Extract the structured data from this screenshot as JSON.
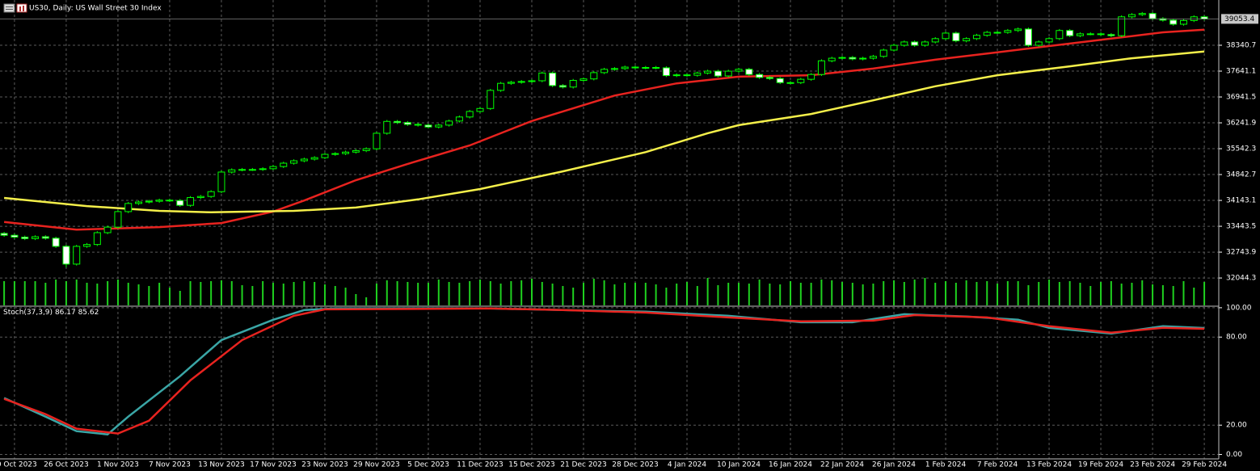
{
  "chart_data": [
    {
      "type": "candlestick",
      "title": "US30, Daily:  US Wall Street 30 Index",
      "xlim": [
        -0.4,
        117.4
      ],
      "ylim": [
        31303,
        39565
      ],
      "yticks": [
        38340.7,
        37641.1,
        36941.5,
        36241.9,
        35542.3,
        34842.7,
        34143.1,
        33443.5,
        32743.9,
        32044.3
      ],
      "xticks": [
        {
          "value": 1,
          "label": "20 Oct 2023"
        },
        {
          "value": 6,
          "label": "26 Oct 2023"
        },
        {
          "value": 11,
          "label": "1 Nov 2023"
        },
        {
          "value": 16,
          "label": "7 Nov 2023"
        },
        {
          "value": 21,
          "label": "13 Nov 2023"
        },
        {
          "value": 26,
          "label": "17 Nov 2023"
        },
        {
          "value": 31,
          "label": "23 Nov 2023"
        },
        {
          "value": 36,
          "label": "29 Nov 2023"
        },
        {
          "value": 41,
          "label": "5 Dec 2023"
        },
        {
          "value": 46,
          "label": "11 Dec 2023"
        },
        {
          "value": 51,
          "label": "15 Dec 2023"
        },
        {
          "value": 56,
          "label": "21 Dec 2023"
        },
        {
          "value": 61,
          "label": "28 Dec 2023"
        },
        {
          "value": 66,
          "label": "4 Jan 2024"
        },
        {
          "value": 71,
          "label": "10 Jan 2024"
        },
        {
          "value": 76,
          "label": "16 Jan 2024"
        },
        {
          "value": 81,
          "label": "22 Jan 2024"
        },
        {
          "value": 86,
          "label": "26 Jan 2024"
        },
        {
          "value": 91,
          "label": "1 Feb 2024"
        },
        {
          "value": 96,
          "label": "7 Feb 2024"
        },
        {
          "value": 101,
          "label": "13 Feb 2024"
        },
        {
          "value": 106,
          "label": "19 Feb 2024"
        },
        {
          "value": 111,
          "label": "23 Feb 2024"
        },
        {
          "value": 116,
          "label": "29 Feb 2024"
        }
      ],
      "grid": true,
      "candle_color": "#00ff00",
      "bull_fill": "#000000",
      "bear_fill": "#ffffff",
      "open": [
        33250,
        33200,
        33150,
        33110,
        33160,
        33120,
        32900,
        32420,
        32900,
        32950,
        33270,
        33420,
        33840,
        34060,
        34100,
        34120,
        34150,
        34140,
        34010,
        34220,
        34250,
        34380,
        34910,
        34970,
        34980,
        34980,
        35000,
        35060,
        35150,
        35215,
        35260,
        35300,
        35390,
        35410,
        35450,
        35490,
        35540,
        35960,
        36280,
        36250,
        36200,
        36180,
        36130,
        36180,
        36290,
        36400,
        36550,
        36630,
        37120,
        37310,
        37340,
        37360,
        37380,
        37590,
        37250,
        37210,
        37390,
        37430,
        37600,
        37690,
        37710,
        37750,
        37730,
        37740,
        37730,
        37520,
        37540,
        37530,
        37590,
        37640,
        37510,
        37640,
        37690,
        37550,
        37470,
        37440,
        37330,
        37330,
        37420,
        37550,
        37920,
        37990,
        38010,
        37970,
        37990,
        38040,
        38210,
        38340,
        38430,
        38340,
        38430,
        38520,
        38670,
        38460,
        38520,
        38610,
        38690,
        38690,
        38740,
        38780,
        38340,
        38430,
        38520,
        38740,
        38600,
        38650,
        38650,
        38630,
        38600,
        39110,
        39170,
        39200,
        39060,
        39020,
        38910,
        39010,
        39110
      ],
      "high": [
        33290,
        33240,
        33190,
        33200,
        33200,
        33160,
        32940,
        32940,
        32990,
        33310,
        33460,
        33880,
        34100,
        34140,
        34160,
        34190,
        34190,
        34180,
        34260,
        34290,
        34420,
        34950,
        35010,
        35020,
        35020,
        35040,
        35100,
        35190,
        35255,
        35300,
        35340,
        35430,
        35450,
        35490,
        35530,
        35580,
        36000,
        36320,
        36320,
        36290,
        36240,
        36220,
        36220,
        36330,
        36440,
        36590,
        36670,
        37160,
        37350,
        37380,
        37400,
        37420,
        37630,
        37630,
        37290,
        37430,
        37470,
        37640,
        37730,
        37750,
        37790,
        37790,
        37780,
        37780,
        37770,
        37580,
        37580,
        37630,
        37680,
        37680,
        37680,
        37730,
        37730,
        37590,
        37510,
        37480,
        37370,
        37460,
        37590,
        37960,
        38030,
        38050,
        38050,
        38030,
        38080,
        38250,
        38380,
        38470,
        38470,
        38470,
        38560,
        38710,
        38710,
        38560,
        38650,
        38730,
        38730,
        38780,
        38820,
        38820,
        38470,
        38560,
        38780,
        38780,
        38690,
        38690,
        38690,
        38670,
        39150,
        39210,
        39240,
        39240,
        39100,
        39060,
        39050,
        39150,
        39150
      ],
      "low": [
        33160,
        33110,
        33070,
        33070,
        33080,
        32860,
        32330,
        32380,
        32860,
        32910,
        33230,
        33380,
        33800,
        34020,
        34060,
        34080,
        34100,
        33970,
        33970,
        34180,
        34210,
        34340,
        34870,
        34930,
        34940,
        34940,
        34960,
        35020,
        35110,
        35175,
        35220,
        35260,
        35350,
        35370,
        35410,
        35450,
        35500,
        35920,
        36210,
        36160,
        36140,
        36090,
        36090,
        36140,
        36250,
        36360,
        36510,
        36590,
        37080,
        37270,
        37300,
        37320,
        37340,
        37210,
        37170,
        37170,
        37350,
        37390,
        37560,
        37650,
        37670,
        37690,
        37690,
        37690,
        37480,
        37480,
        37490,
        37490,
        37550,
        37470,
        37470,
        37600,
        37510,
        37430,
        37400,
        37290,
        37290,
        37290,
        37380,
        37510,
        37880,
        37950,
        37930,
        37930,
        37950,
        38000,
        38170,
        38300,
        38300,
        38300,
        38390,
        38480,
        38420,
        38420,
        38480,
        38570,
        38650,
        38650,
        38700,
        38300,
        38300,
        38390,
        38480,
        38560,
        38560,
        38610,
        38590,
        38560,
        38560,
        39070,
        39130,
        39020,
        38980,
        38870,
        38870,
        38970,
        39010
      ],
      "close": [
        33200,
        33150,
        33110,
        33160,
        33120,
        32900,
        32420,
        32900,
        32950,
        33270,
        33420,
        33840,
        34060,
        34100,
        34120,
        34150,
        34140,
        34010,
        34220,
        34250,
        34380,
        34910,
        34970,
        34980,
        34980,
        35000,
        35060,
        35150,
        35215,
        35260,
        35300,
        35390,
        35410,
        35450,
        35490,
        35540,
        35960,
        36280,
        36250,
        36200,
        36180,
        36130,
        36180,
        36290,
        36400,
        36550,
        36630,
        37120,
        37310,
        37340,
        37360,
        37380,
        37590,
        37250,
        37210,
        37390,
        37430,
        37600,
        37690,
        37710,
        37750,
        37730,
        37740,
        37730,
        37520,
        37540,
        37530,
        37590,
        37640,
        37510,
        37640,
        37690,
        37550,
        37470,
        37440,
        37330,
        37330,
        37420,
        37550,
        37920,
        37990,
        38010,
        37970,
        37990,
        38040,
        38210,
        38340,
        38430,
        38340,
        38430,
        38520,
        38670,
        38460,
        38520,
        38610,
        38690,
        38690,
        38740,
        38780,
        38340,
        38430,
        38520,
        38740,
        38600,
        38650,
        38650,
        38630,
        38600,
        39110,
        39170,
        39200,
        39060,
        39020,
        38910,
        39010,
        39110,
        39053.4
      ],
      "volume": [
        30,
        30,
        30,
        30,
        28,
        32,
        30,
        32,
        28,
        27,
        30,
        32,
        28,
        26,
        24,
        28,
        22,
        18,
        30,
        29,
        30,
        31,
        30,
        25,
        24,
        30,
        28,
        27,
        29,
        30,
        29,
        26,
        24,
        22,
        14,
        10,
        27,
        31,
        30,
        29,
        28,
        28,
        32,
        29,
        28,
        30,
        32,
        30,
        27,
        30,
        31,
        33,
        29,
        27,
        24,
        22,
        28,
        33,
        31,
        26,
        28,
        28,
        28,
        26,
        22,
        27,
        29,
        24,
        34,
        25,
        28,
        28,
        27,
        32,
        27,
        26,
        30,
        28,
        28,
        32,
        31,
        29,
        28,
        26,
        27,
        30,
        31,
        29,
        32,
        34,
        28,
        30,
        28,
        31,
        29,
        30,
        27,
        30,
        30,
        25,
        29,
        32,
        29,
        30,
        28,
        24,
        29,
        30,
        27,
        28,
        31,
        26,
        25,
        24,
        30,
        22,
        29
      ],
      "volume_color": "#1fd11f",
      "series": [
        {
          "color": "#e8231f",
          "x": [
            0,
            7,
            15,
            21,
            26,
            29,
            34,
            39,
            45,
            51,
            59,
            65,
            71,
            78,
            84,
            90,
            96,
            101,
            107,
            112,
            116
          ],
          "values": [
            33560,
            33350,
            33420,
            33530,
            33840,
            34140,
            34690,
            35130,
            35630,
            36290,
            36980,
            37310,
            37490,
            37530,
            37710,
            37950,
            38150,
            38320,
            38520,
            38690,
            38760
          ]
        },
        {
          "color": "#f4ef4a",
          "x": [
            0,
            8,
            15,
            20,
            28,
            34,
            40,
            46,
            54,
            62,
            68,
            71,
            78,
            84,
            90,
            96,
            103,
            109,
            116
          ],
          "values": [
            34210,
            33990,
            33860,
            33820,
            33860,
            33950,
            34170,
            34450,
            34930,
            35450,
            35960,
            36180,
            36480,
            36850,
            37230,
            37530,
            37770,
            37990,
            38170
          ]
        }
      ]
    },
    {
      "type": "line",
      "title": "Stoch(37,3,9)",
      "xlim": [
        -0.4,
        117.4
      ],
      "ylim": [
        -3,
        100.5
      ],
      "yticks": [
        {
          "value": 100,
          "label": "100.00"
        },
        {
          "value": 80,
          "label": "80.00"
        },
        {
          "value": 20,
          "label": "20.00"
        },
        {
          "value": 0,
          "label": "0.00"
        }
      ],
      "grid": true,
      "series": [
        {
          "color": "#3aa6a6",
          "x": [
            0,
            4,
            7,
            10,
            12,
            17,
            21,
            26,
            29,
            32,
            47,
            54,
            62,
            70,
            77,
            82,
            87,
            93,
            98,
            101,
            107,
            112,
            116
          ],
          "values": [
            38.5,
            25.8,
            15.9,
            13.7,
            25.8,
            53.3,
            78,
            91.8,
            98.4,
            99.5,
            99.5,
            98.4,
            97.3,
            94.5,
            90.1,
            90.1,
            95.6,
            94,
            91.8,
            86.3,
            82.4,
            87.4,
            86.17
          ]
        },
        {
          "color": "#e8231f",
          "x": [
            0,
            4,
            7,
            11,
            14,
            18,
            23,
            28,
            31,
            47,
            54,
            62,
            70,
            77,
            84,
            88,
            95,
            101,
            107,
            112,
            116
          ],
          "values": [
            37.9,
            27.5,
            17.6,
            14.3,
            23,
            50.5,
            78,
            94.5,
            98.9,
            99.5,
            98.4,
            96.7,
            93.4,
            90.7,
            91.2,
            95,
            93.4,
            87.4,
            83,
            86.3,
            85.62
          ]
        }
      ]
    }
  ]
}
